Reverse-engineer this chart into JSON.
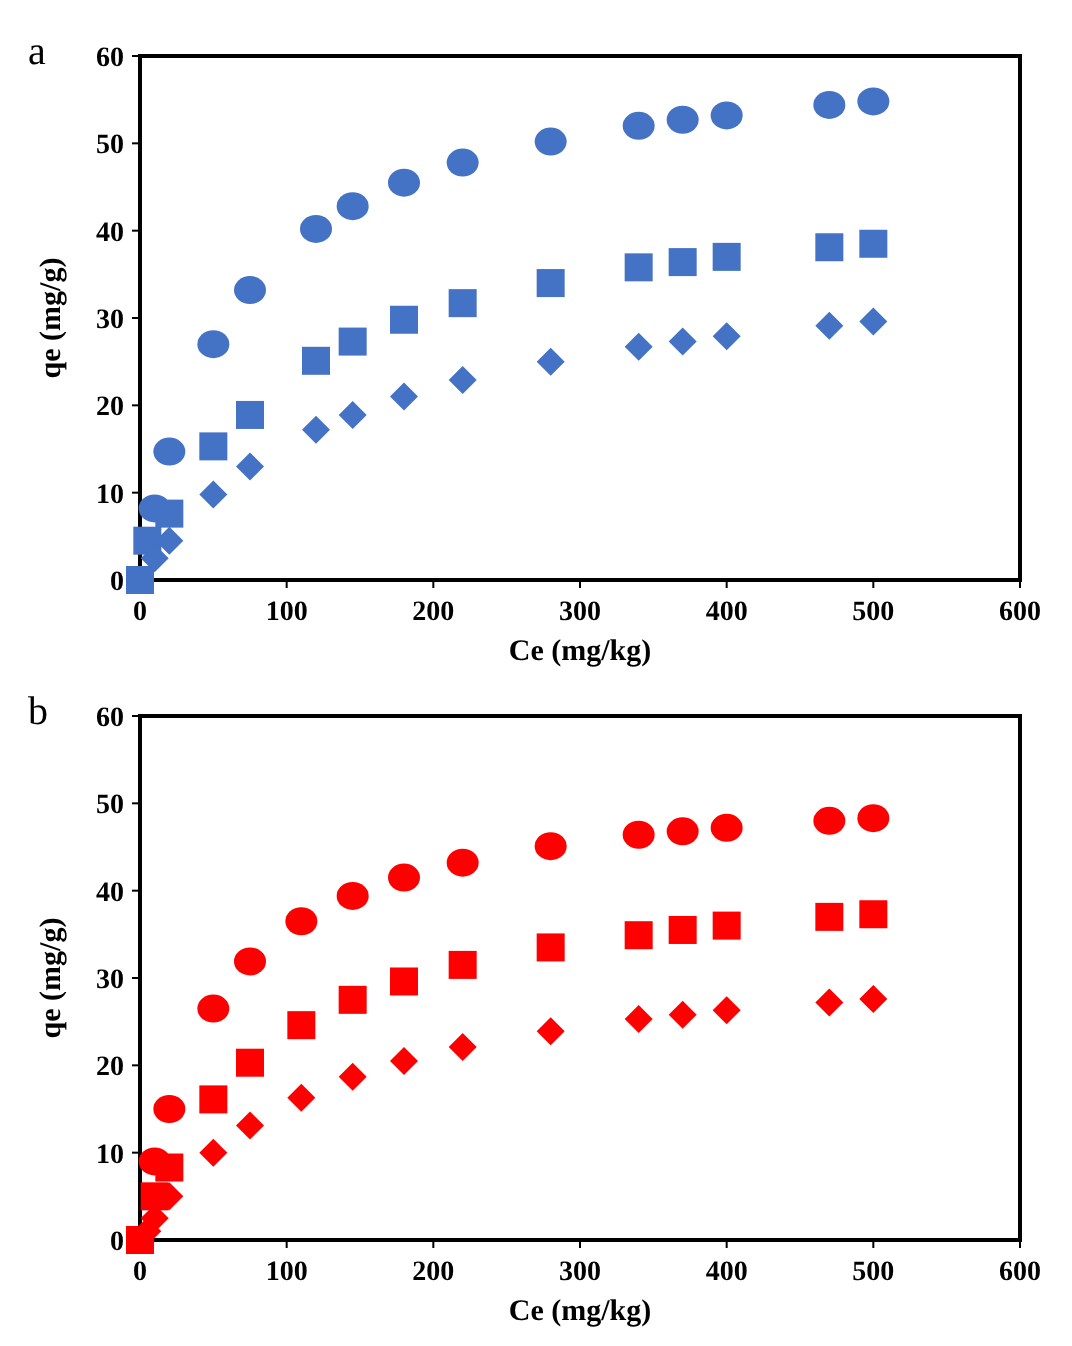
{
  "chart_data": [
    {
      "type": "scatter",
      "title": "a",
      "xlabel": "Ce (mg/kg)",
      "ylabel": "qe (mg/g)",
      "xlim": [
        0,
        600
      ],
      "xticks": [
        0,
        100,
        200,
        300,
        400,
        500,
        600
      ],
      "ylim": [
        0,
        60
      ],
      "yticks": [
        0,
        10,
        20,
        30,
        40,
        50,
        60
      ],
      "grid": false,
      "series": [
        {
          "color": "#4472c4",
          "marker": "circle",
          "x": [
            10,
            20,
            50,
            75,
            120,
            145,
            180,
            220,
            280,
            340,
            370,
            400,
            470,
            500
          ],
          "values": [
            8.2,
            14.7,
            27,
            33.2,
            40.2,
            42.8,
            45.5,
            47.8,
            50.2,
            52,
            52.7,
            53.2,
            54.4,
            54.8
          ]
        },
        {
          "color": "#4472c4",
          "marker": "square",
          "x": [
            0,
            5,
            20,
            50,
            75,
            120,
            145,
            180,
            220,
            280,
            340,
            370,
            400,
            470,
            500
          ],
          "values": [
            0,
            4.5,
            7.6,
            15.3,
            18.9,
            25.1,
            27.3,
            29.8,
            31.7,
            34,
            35.8,
            36.4,
            37,
            38.1,
            38.5
          ]
        },
        {
          "color": "#4472c4",
          "marker": "diamond",
          "x": [
            10,
            20,
            50,
            75,
            120,
            145,
            180,
            220,
            280,
            340,
            370,
            400,
            470,
            500
          ],
          "values": [
            2.5,
            4.5,
            9.8,
            13,
            17.2,
            18.9,
            21,
            22.9,
            25,
            26.7,
            27.3,
            27.9,
            29.1,
            29.6
          ]
        }
      ]
    },
    {
      "type": "scatter",
      "title": "b",
      "xlabel": "Ce (mg/kg)",
      "ylabel": "qe (mg/g)",
      "xlim": [
        0,
        600
      ],
      "xticks": [
        0,
        100,
        200,
        300,
        400,
        500,
        600
      ],
      "ylim": [
        0,
        60
      ],
      "yticks": [
        0,
        10,
        20,
        30,
        40,
        50,
        60
      ],
      "grid": false,
      "series": [
        {
          "color": "#ff0000",
          "marker": "circle",
          "x": [
            10,
            20,
            50,
            75,
            110,
            145,
            180,
            220,
            280,
            340,
            370,
            400,
            470,
            500
          ],
          "values": [
            9,
            15,
            26.5,
            31.9,
            36.5,
            39.4,
            41.5,
            43.2,
            45.1,
            46.4,
            46.8,
            47.2,
            48,
            48.3
          ]
        },
        {
          "color": "#ff0000",
          "marker": "square",
          "x": [
            0,
            10,
            20,
            50,
            75,
            110,
            145,
            180,
            220,
            280,
            340,
            370,
            400,
            470,
            500
          ],
          "values": [
            0,
            5,
            8.3,
            16.1,
            20.3,
            24.6,
            27.5,
            29.6,
            31.5,
            33.5,
            34.9,
            35.5,
            36,
            37,
            37.3
          ]
        },
        {
          "color": "#ff0000",
          "marker": "diamond",
          "x": [
            5,
            10,
            20,
            50,
            75,
            110,
            145,
            180,
            220,
            280,
            340,
            370,
            400,
            470,
            500
          ],
          "values": [
            1,
            2.5,
            5,
            10,
            13.1,
            16.3,
            18.7,
            20.5,
            22.1,
            23.9,
            25.3,
            25.8,
            26.3,
            27.2,
            27.6
          ]
        }
      ]
    }
  ]
}
